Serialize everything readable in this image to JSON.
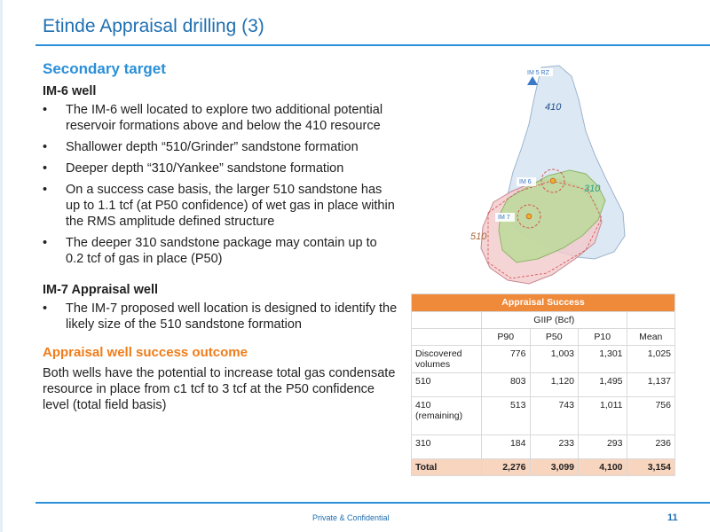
{
  "slide": {
    "title": "Etinde Appraisal drilling (3)",
    "secondary_heading": "Secondary target",
    "im6": {
      "heading": "IM-6 well",
      "bullets": [
        "The IM-6 well located to explore two additional potential reservoir formations above and below the 410 resource",
        "Shallower depth “510/Grinder” sandstone formation",
        "Deeper depth “310/Yankee” sandstone formation",
        "On a success case basis, the larger 510 sandstone has up to 1.1 tcf (at P50 confidence) of wet gas in place within the RMS amplitude defined structure",
        "The deeper 310 sandstone package may contain up to 0.2 tcf of gas in place (P50)"
      ]
    },
    "im7": {
      "heading": "IM-7 Appraisal well",
      "bullets": [
        "The IM-7 proposed well location is designed to identify the likely size of the 510 sandstone formation"
      ]
    },
    "outcome_heading": "Appraisal well success outcome",
    "outcome_text": "Both wells have the potential to increase total gas condensate resource in place from c1 tcf to 3 tcf at the P50 confidence level (total field basis)"
  },
  "map": {
    "labels": {
      "im5rz": "IM 5 RZ",
      "im6": "IM 6",
      "im7": "IM 7",
      "f410": "410",
      "f310": "310",
      "f510": "510"
    },
    "colors": {
      "field410": "#dce8f4",
      "field510": "#f2c9cc",
      "field310": "#bcd99a",
      "marker": "#3a78c8"
    }
  },
  "table": {
    "title": "Appraisal Success",
    "group_header": "GIIP (Bcf)",
    "columns": [
      "P90",
      "P50",
      "P10",
      "Mean"
    ],
    "rows": [
      {
        "label": "Discovered volumes",
        "values": [
          "776",
          "1,003",
          "1,301",
          "1,025"
        ]
      },
      {
        "label": "510",
        "values": [
          "803",
          "1,120",
          "1,495",
          "1,137"
        ]
      },
      {
        "label": "410 (remaining)",
        "values": [
          "513",
          "743",
          "1,011",
          "756"
        ]
      },
      {
        "label": "310",
        "values": [
          "184",
          "233",
          "293",
          "236"
        ]
      }
    ],
    "total": {
      "label": "Total",
      "values": [
        "2,276",
        "3,099",
        "4,100",
        "3,154"
      ]
    },
    "colors": {
      "header": "#f08a3b",
      "total": "#f8d5bf"
    }
  },
  "footer": {
    "confidential": "Private & Confidential",
    "page": "11"
  }
}
